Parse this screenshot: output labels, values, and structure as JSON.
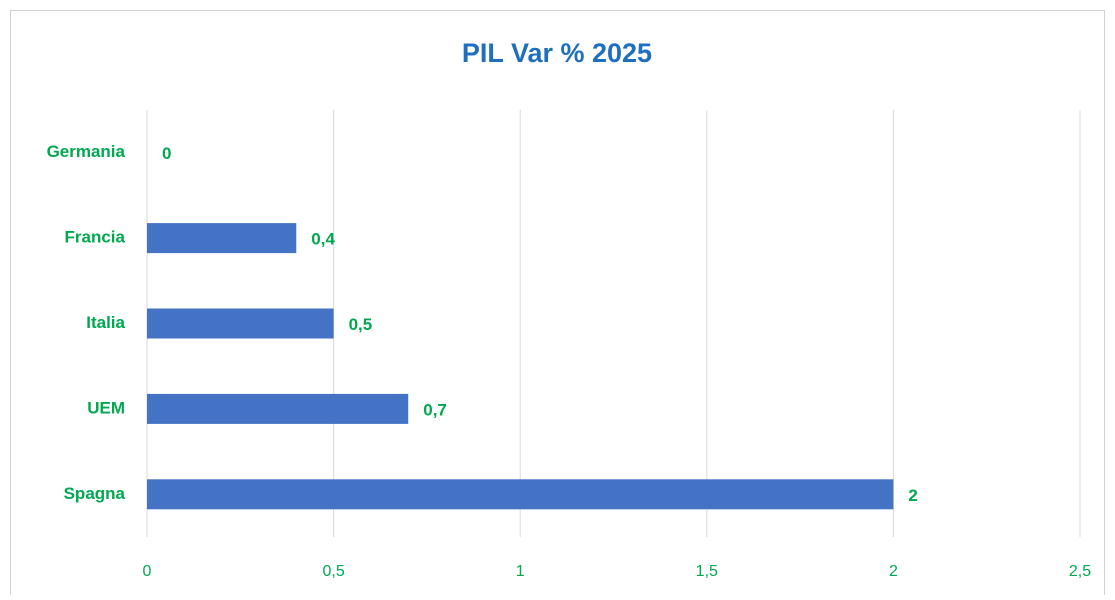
{
  "chart_data": {
    "type": "hbar",
    "title": "PIL Var % 2025",
    "categories": [
      "Germania",
      "Francia",
      "Italia",
      "UEM",
      "Spagna"
    ],
    "values": [
      0,
      0.4,
      0.5,
      0.7,
      2
    ],
    "value_labels": [
      "0",
      "0,4",
      "0,5",
      "0,7",
      "2"
    ],
    "color": "#4472c4",
    "xlim": [
      0,
      2.5
    ],
    "xticks": [
      0,
      {
        "value": 0.5,
        "label": "0,5"
      },
      1,
      {
        "value": 1.5,
        "label": "1,5"
      },
      2,
      {
        "value": 2.5,
        "label": "2,5"
      }
    ],
    "grid": true
  }
}
